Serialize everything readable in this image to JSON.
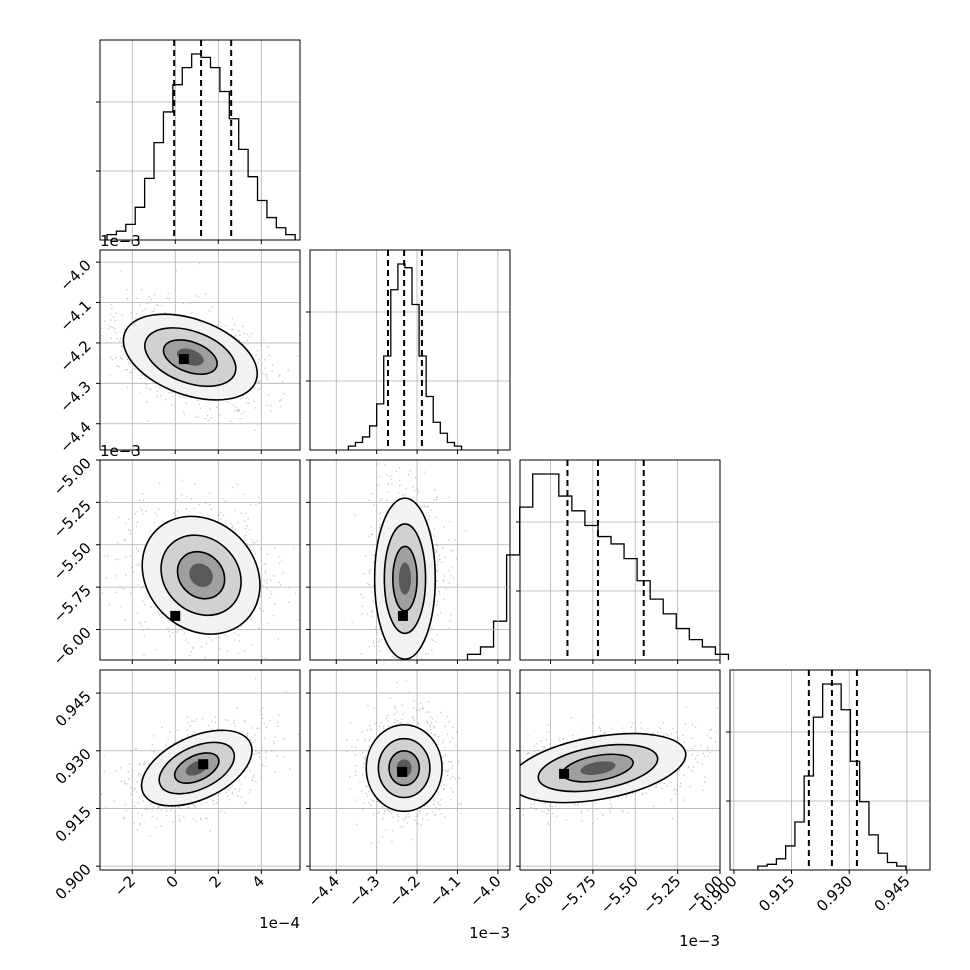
{
  "chart_data": {
    "type": "corner",
    "grid": true,
    "parameters": [
      {
        "range": [
          -3.5,
          5.8
        ],
        "ticks": [
          -2,
          0,
          2,
          4
        ],
        "tick_labels": [
          "−2",
          "0",
          "2",
          "4"
        ],
        "offset_text": "1e−4",
        "mean": 1.2,
        "sd": 1.25,
        "quantiles": [
          -0.05,
          1.2,
          2.6
        ]
      },
      {
        "range": [
          -4.465,
          -3.97
        ],
        "ticks": [
          -4.4,
          -4.3,
          -4.2,
          -4.1,
          -4.0
        ],
        "tick_labels": [
          "−4.4",
          "−4.3",
          "−4.2",
          "−4.1",
          "−4.0"
        ],
        "offset_text": "1e−3",
        "mean": -4.23,
        "sd": 0.04,
        "quantiles": [
          -4.272,
          -4.232,
          -4.188
        ]
      },
      {
        "range": [
          -6.18,
          -5.0
        ],
        "ticks": [
          -6.0,
          -5.75,
          -5.5,
          -5.25,
          -5.0
        ],
        "tick_labels": [
          "−6.00",
          "−5.75",
          "−5.50",
          "−5.25",
          "−5.00"
        ],
        "offset_text": "1e−3",
        "mean": -5.72,
        "sd": 0.22,
        "quantiles": [
          -5.9,
          -5.72,
          -5.45
        ]
      },
      {
        "range": [
          0.899,
          0.951
        ],
        "ticks": [
          0.9,
          0.915,
          0.93,
          0.945
        ],
        "tick_labels": [
          "0.900",
          "0.915",
          "0.930",
          "0.945"
        ],
        "offset_text": "",
        "mean": 0.9255,
        "sd": 0.0055,
        "quantiles": [
          0.9195,
          0.9255,
          0.932
        ]
      }
    ],
    "histograms": [
      [
        2,
        4,
        8,
        18,
        35,
        56,
        74,
        90,
        100,
        108,
        106,
        100,
        86,
        70,
        52,
        36,
        22,
        12,
        6,
        2
      ],
      [
        1,
        3,
        6,
        12,
        24,
        50,
        86,
        100,
        98,
        78,
        50,
        28,
        14,
        8,
        3,
        1
      ],
      [
        2,
        6,
        20,
        56,
        82,
        100,
        100,
        88,
        80,
        72,
        66,
        62,
        54,
        42,
        32,
        24,
        16,
        10,
        6,
        2
      ],
      [
        1,
        2,
        5,
        12,
        25,
        50,
        82,
        100,
        100,
        86,
        58,
        36,
        18,
        8,
        3,
        1
      ]
    ],
    "pairs": [
      {
        "row": 1,
        "col": 0,
        "center": [
          0.7,
          -4.235
        ],
        "extent": [
          2.6,
          0.075
        ],
        "angle": -20,
        "mode": [
          0.4,
          -4.24
        ]
      },
      {
        "row": 2,
        "col": 0,
        "center": [
          1.2,
          -5.68
        ],
        "extent": [
          2.0,
          0.3
        ],
        "angle": 45,
        "mode": [
          0.0,
          -5.92
        ]
      },
      {
        "row": 2,
        "col": 1,
        "center": [
          -4.23,
          -5.7
        ],
        "extent": [
          0.06,
          0.38
        ],
        "angle": 0,
        "mode": [
          -4.235,
          -5.92
        ]
      },
      {
        "row": 3,
        "col": 0,
        "center": [
          1.0,
          0.9255
        ],
        "extent": [
          2.2,
          0.0065
        ],
        "angle": 25,
        "mode": [
          1.3,
          0.9265
        ]
      },
      {
        "row": 3,
        "col": 1,
        "center": [
          -4.232,
          0.9255
        ],
        "extent": [
          0.075,
          0.009
        ],
        "angle": 0,
        "mode": [
          -4.237,
          0.9245
        ]
      },
      {
        "row": 3,
        "col": 2,
        "center": [
          -5.72,
          0.9255
        ],
        "extent": [
          0.42,
          0.0065
        ],
        "angle": 10,
        "mode": [
          -5.92,
          0.924
        ]
      }
    ]
  }
}
